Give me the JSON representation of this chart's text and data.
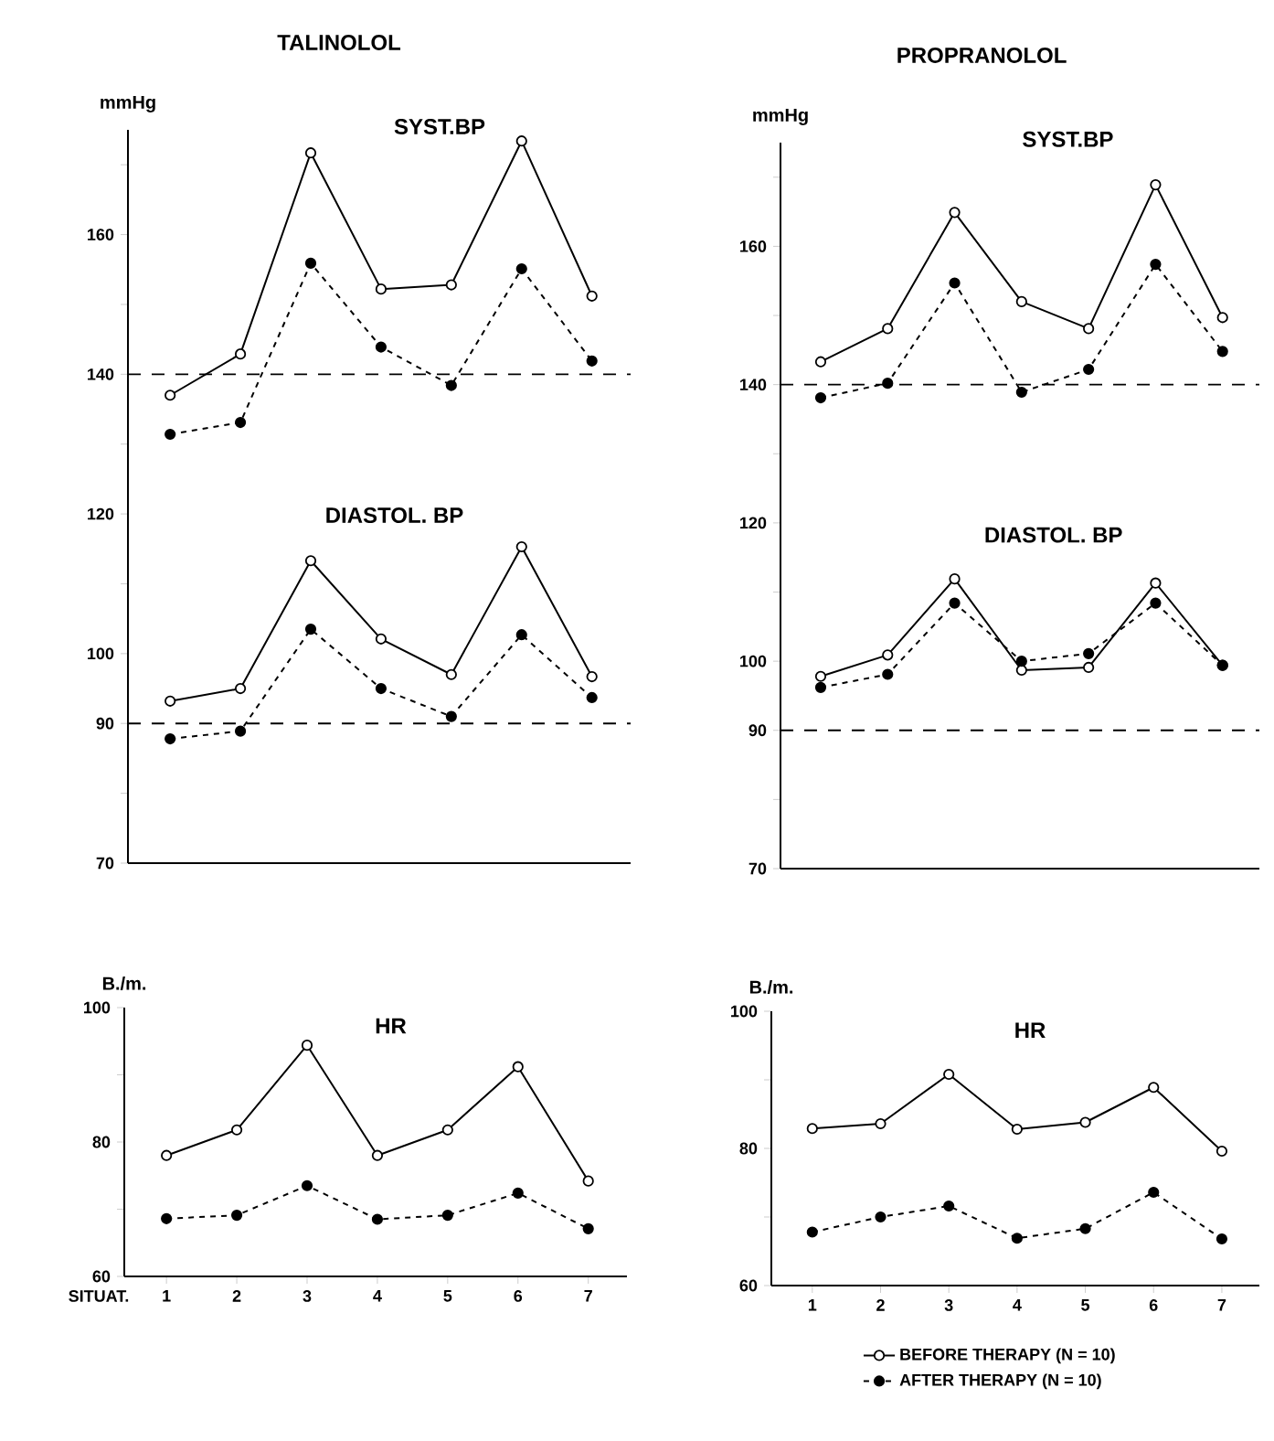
{
  "chart_data": [
    {
      "type": "line",
      "title": "TALINOLOL",
      "ylabel": "mmHg",
      "annotations": [
        "SYST.BP",
        "DIASTOL. BP"
      ],
      "categories": [
        "1",
        "2",
        "3",
        "4",
        "5",
        "6",
        "7"
      ],
      "tick_labels": "y",
      "marker": "circle",
      "ylim": [
        70,
        175
      ],
      "yticks": [
        70,
        {
          "value": 80,
          "label": null
        },
        90,
        100,
        {
          "value": 110,
          "label": null
        },
        120,
        {
          "value": 130,
          "label": null
        },
        140,
        {
          "value": 150,
          "label": null
        },
        160,
        {
          "value": 170,
          "label": null
        }
      ],
      "ref_lines": [
        {
          "axis": "y",
          "value": 140,
          "line_style": "dashed"
        },
        {
          "axis": "y",
          "value": 90,
          "line_style": "dashed"
        }
      ],
      "series": [
        {
          "color": "#000000",
          "line_style": "solid",
          "values": [
            137.0,
            142.9,
            171.7,
            152.2,
            152.8,
            173.4,
            151.2
          ]
        },
        {
          "color": "#000000",
          "line_style": "dashed",
          "values": [
            131.4,
            133.1,
            155.9,
            143.9,
            138.4,
            155.1,
            141.9
          ]
        },
        {
          "color": "#000000",
          "line_style": "solid",
          "values": [
            93.2,
            95.0,
            113.3,
            102.1,
            97.0,
            115.3,
            96.7
          ]
        },
        {
          "color": "#000000",
          "line_style": "dashed",
          "values": [
            87.8,
            88.9,
            103.5,
            95.0,
            91.0,
            102.7,
            93.7
          ]
        }
      ]
    },
    {
      "type": "line",
      "title": "PROPRANOLOL",
      "ylabel": "mmHg",
      "annotations": [
        "SYST.BP",
        "DIASTOL. BP"
      ],
      "categories": [
        "1",
        "2",
        "3",
        "4",
        "5",
        "6",
        "7"
      ],
      "tick_labels": "y",
      "marker": "circle",
      "ylim": [
        70,
        175
      ],
      "yticks": [
        70,
        {
          "value": 80,
          "label": null
        },
        90,
        100,
        {
          "value": 110,
          "label": null
        },
        120,
        {
          "value": 130,
          "label": null
        },
        140,
        {
          "value": 150,
          "label": null
        },
        160,
        {
          "value": 170,
          "label": null
        }
      ],
      "ref_lines": [
        {
          "axis": "y",
          "value": 140,
          "line_style": "dashed"
        },
        {
          "axis": "y",
          "value": 90,
          "line_style": "dashed"
        }
      ],
      "series": [
        {
          "color": "#000000",
          "line_style": "solid",
          "values": [
            143.3,
            148.1,
            164.9,
            152.0,
            148.1,
            168.9,
            149.7
          ]
        },
        {
          "color": "#000000",
          "line_style": "dashed",
          "values": [
            138.1,
            140.2,
            154.7,
            138.9,
            142.2,
            157.4,
            144.8
          ]
        },
        {
          "color": "#000000",
          "line_style": "solid",
          "values": [
            97.8,
            100.9,
            111.9,
            98.7,
            99.1,
            111.3,
            99.4
          ]
        },
        {
          "color": "#000000",
          "line_style": "dashed",
          "values": [
            96.2,
            98.1,
            108.4,
            100.0,
            101.1,
            108.4,
            99.4
          ]
        }
      ]
    },
    {
      "type": "line",
      "ylabel": "B./m.",
      "xlabel": "SITUAT.",
      "annotations": [
        "HR"
      ],
      "categories": [
        "1",
        "2",
        "3",
        "4",
        "5",
        "6",
        "7"
      ],
      "marker": "circle",
      "ylim": [
        60,
        100
      ],
      "yticks": [
        60,
        {
          "value": 70,
          "label": null
        },
        80,
        {
          "value": 90,
          "label": null
        },
        100
      ],
      "series": [
        {
          "color": "#000000",
          "line_style": "solid",
          "values": [
            78.0,
            81.8,
            94.4,
            78.0,
            81.8,
            91.2,
            74.2
          ]
        },
        {
          "color": "#000000",
          "line_style": "dashed",
          "values": [
            68.6,
            69.1,
            73.5,
            68.5,
            69.1,
            72.4,
            67.1
          ]
        }
      ]
    },
    {
      "type": "line",
      "ylabel": "B./m.",
      "annotations": [
        "HR"
      ],
      "categories": [
        "1",
        "2",
        "3",
        "4",
        "5",
        "6",
        "7"
      ],
      "marker": "circle",
      "ylim": [
        60,
        100
      ],
      "legend": "bottom",
      "yticks": [
        60,
        {
          "value": 70,
          "label": null
        },
        80,
        {
          "value": 90,
          "label": null
        },
        100
      ],
      "series": [
        {
          "name": "BEFORE THERAPY (N = 10)",
          "color": "#000000",
          "line_style": "solid",
          "values": [
            82.9,
            83.6,
            90.8,
            82.8,
            83.8,
            88.9,
            79.6
          ]
        },
        {
          "name": "AFTER THERAPY (N = 10)",
          "color": "#000000",
          "line_style": "dashed",
          "values": [
            67.8,
            70.0,
            71.6,
            66.9,
            68.3,
            73.6,
            66.8
          ]
        }
      ]
    }
  ]
}
